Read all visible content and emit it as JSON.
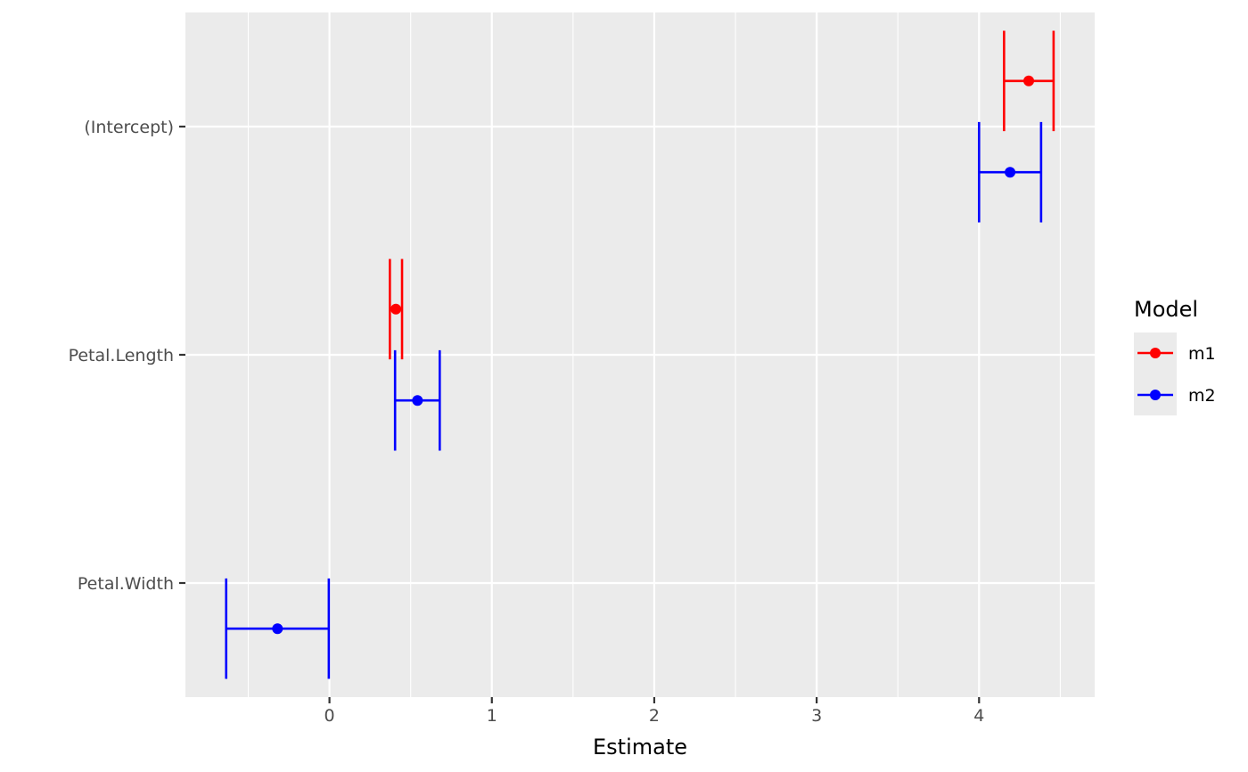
{
  "chart_data": {
    "type": "scatter",
    "subtype": "coefficient-plot-with-error-bars",
    "title": "",
    "xlabel": "Estimate",
    "ylabel": "",
    "xlim": [
      -0.887,
      4.712
    ],
    "x_ticks": [
      0,
      1,
      2,
      3,
      4
    ],
    "x_tick_labels": [
      "0",
      "1",
      "2",
      "3",
      "4"
    ],
    "categories": [
      "(Intercept)",
      "Petal.Length",
      "Petal.Width"
    ],
    "grid": true,
    "legend": {
      "title": "Model",
      "position": "right"
    },
    "series": [
      {
        "name": "m1",
        "color": "#FF0000",
        "points": [
          {
            "term": "(Intercept)",
            "estimate": 4.306,
            "conf_low": 4.154,
            "conf_high": 4.459
          },
          {
            "term": "Petal.Length",
            "estimate": 0.409,
            "conf_low": 0.372,
            "conf_high": 0.447
          }
        ]
      },
      {
        "name": "m2",
        "color": "#0000FF",
        "points": [
          {
            "term": "(Intercept)",
            "estimate": 4.191,
            "conf_low": 4.0,
            "conf_high": 4.382
          },
          {
            "term": "Petal.Length",
            "estimate": 0.542,
            "conf_low": 0.404,
            "conf_high": 0.679
          },
          {
            "term": "Petal.Width",
            "estimate": -0.32,
            "conf_low": -0.636,
            "conf_high": -0.004
          }
        ]
      }
    ]
  }
}
